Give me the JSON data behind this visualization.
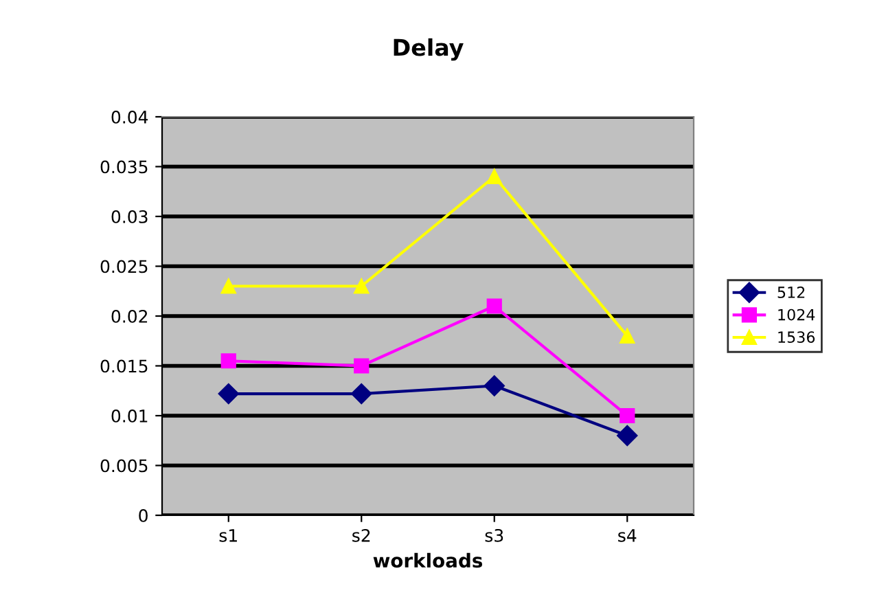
{
  "chart_data": {
    "type": "line",
    "title": "Delay",
    "xlabel": "workloads",
    "categories": [
      "s1",
      "s2",
      "s3",
      "s4"
    ],
    "series": [
      {
        "name": "512",
        "color": "#000080",
        "marker": "diamond",
        "values": [
          0.0122,
          0.0122,
          0.013,
          0.008
        ]
      },
      {
        "name": "1024",
        "color": "#ff00ff",
        "marker": "square",
        "values": [
          0.0155,
          0.015,
          0.021,
          0.01
        ]
      },
      {
        "name": "1536",
        "color": "#ffff00",
        "marker": "triangle",
        "values": [
          0.023,
          0.023,
          0.034,
          0.018
        ]
      }
    ],
    "ylim": [
      0,
      0.04
    ],
    "yticks": [
      0,
      0.005,
      0.01,
      0.015,
      0.02,
      0.025,
      0.03,
      0.035,
      0.04
    ],
    "grid": "y",
    "legend": "right",
    "line_style": "solid"
  }
}
